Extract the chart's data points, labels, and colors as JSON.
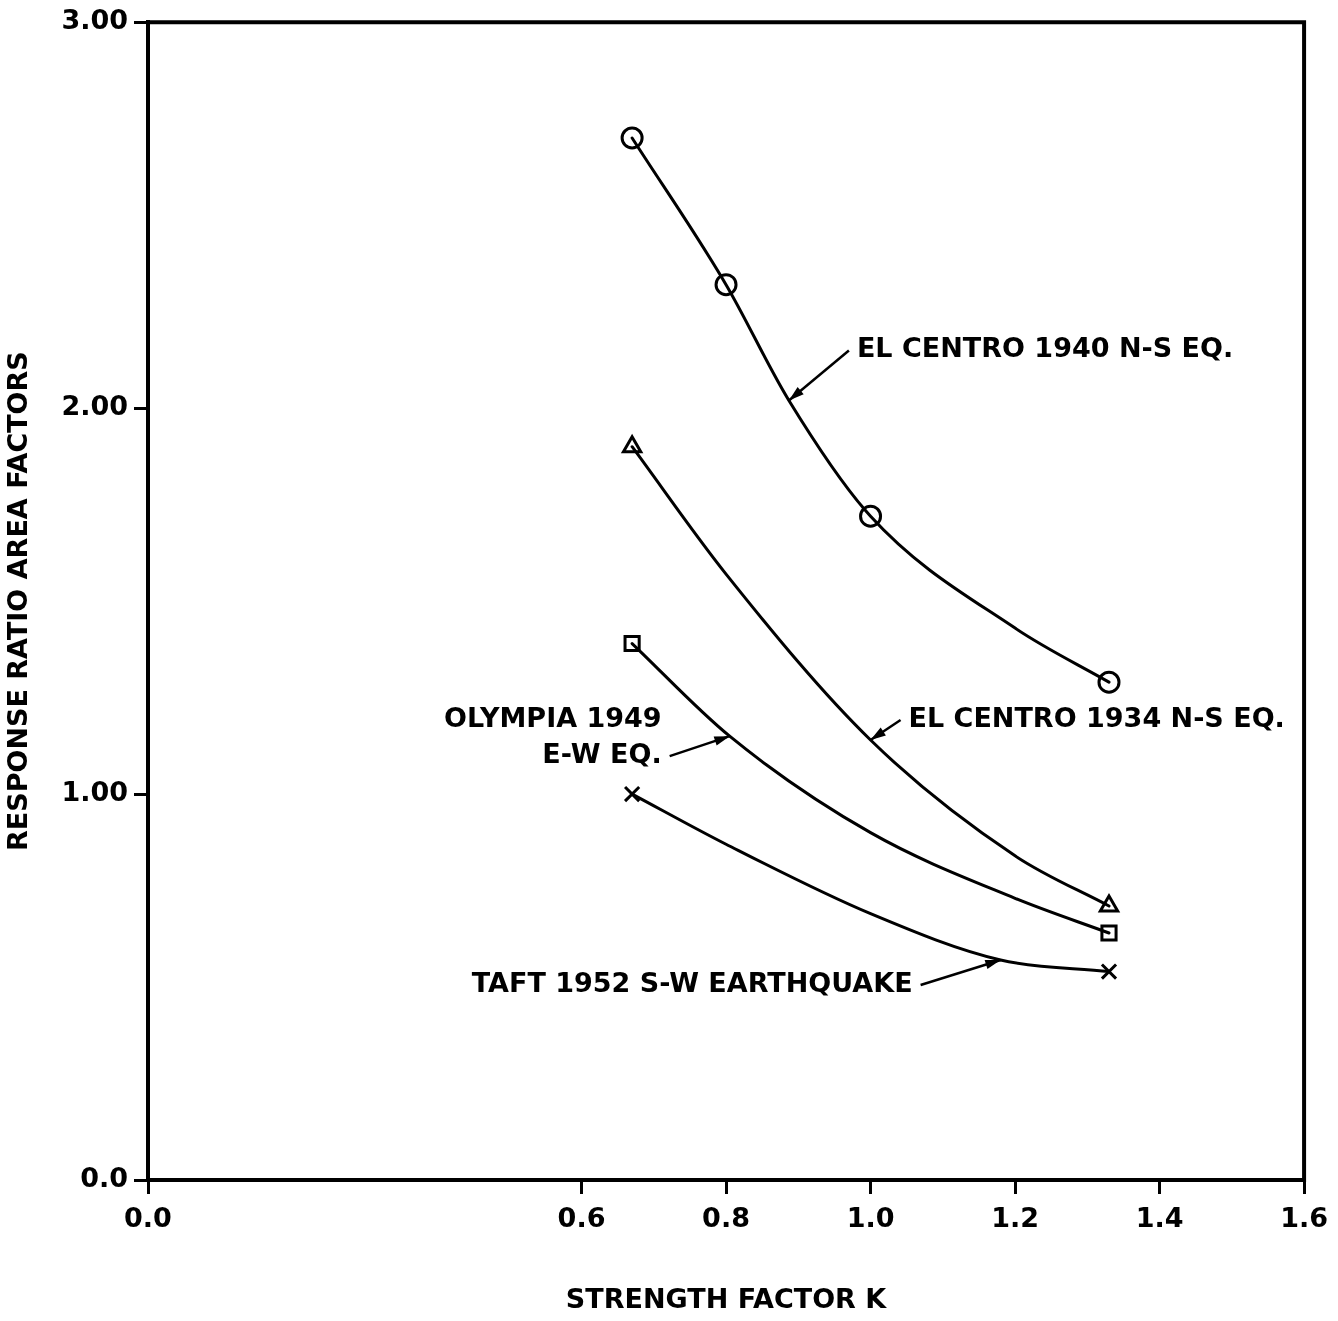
{
  "chart_data": {
    "type": "line",
    "xlabel": "STRENGTH FACTOR K",
    "ylabel": "RESPONSE RATIO AREA FACTORS",
    "xlim": [
      0,
      1.6
    ],
    "xticks": [
      {
        "value": 0,
        "label": "0.0"
      },
      {
        "value": 0.6,
        "label": "0.6"
      },
      {
        "value": 0.8,
        "label": "0.8"
      },
      {
        "value": 1,
        "label": "1.0"
      },
      {
        "value": 1.2,
        "label": "1.2"
      },
      {
        "value": 1.4,
        "label": "1.4"
      },
      {
        "value": 1.6,
        "label": "1.6"
      }
    ],
    "ylim": [
      0,
      3
    ],
    "yticks": [
      {
        "value": 0,
        "label": "0.0"
      },
      {
        "value": 1,
        "label": "1.00"
      },
      {
        "value": 2,
        "label": "2.00"
      },
      {
        "value": 3,
        "label": "3.00"
      }
    ],
    "grid": false,
    "legend": false,
    "line_style": "solid",
    "series": [
      {
        "type": "line",
        "marker": "none",
        "color": "#000000",
        "x": [
          0.67,
          0.8,
          0.887,
          1.0,
          1.2,
          1.33
        ],
        "values": [
          2.7,
          2.32,
          2.02,
          1.72,
          1.43,
          1.29
        ]
      },
      {
        "type": "line",
        "marker": "none",
        "color": "#000000",
        "x": [
          0.67,
          0.8,
          1.0,
          1.2,
          1.33
        ],
        "values": [
          1.9,
          1.57,
          1.14,
          0.84,
          0.71
        ]
      },
      {
        "type": "line",
        "marker": "none",
        "color": "#000000",
        "x": [
          0.67,
          0.805,
          1.0,
          1.2,
          1.33
        ],
        "values": [
          1.39,
          1.15,
          0.9,
          0.73,
          0.64
        ]
      },
      {
        "type": "line",
        "marker": "none",
        "color": "#000000",
        "x": [
          0.67,
          0.8,
          1.0,
          1.18,
          1.33
        ],
        "values": [
          1.0,
          0.87,
          0.69,
          0.57,
          0.54
        ]
      },
      {
        "type": "scatter",
        "marker": "circle",
        "color": "#000000",
        "x": [
          0.67,
          0.8,
          1.0,
          1.33
        ],
        "values": [
          2.7,
          2.32,
          1.72,
          1.29
        ]
      },
      {
        "type": "scatter",
        "marker": "triangle",
        "color": "#000000",
        "x": [
          0.67,
          1.33
        ],
        "values": [
          1.9,
          0.71
        ]
      },
      {
        "type": "scatter",
        "marker": "square",
        "color": "#000000",
        "x": [
          0.67,
          1.33
        ],
        "values": [
          1.39,
          0.64
        ]
      },
      {
        "type": "scatter",
        "marker": "cross",
        "color": "#000000",
        "x": [
          0.67,
          1.33
        ],
        "values": [
          1.0,
          0.54
        ]
      }
    ],
    "annotations": [
      {
        "text": "EL CENTRO 1940 N-S EQ.",
        "x": 0.887,
        "y": 2.02
      },
      {
        "text": "EL CENTRO 1934 N-S EQ.",
        "x": 1.0,
        "y": 1.14
      },
      {
        "text": "OLYMPIA 1949\nE-W EQ.",
        "x": 0.805,
        "y": 1.15
      },
      {
        "text": "TAFT 1952 S-W EARTHQUAKE",
        "x": 1.18,
        "y": 0.57
      }
    ]
  }
}
